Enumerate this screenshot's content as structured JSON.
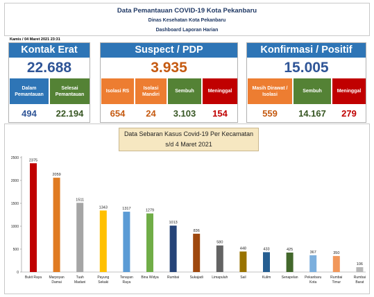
{
  "header": {
    "title": "Data Pemantauan COVID-19 Kota Pekanbaru",
    "subtitle": "Dinas Kesehatan Kota Pekanbaru",
    "report": "Dashboard Laporan Harian"
  },
  "date_text": "Kamis / 04 Maret 2021 23:31",
  "kontak": {
    "title": "Kontak Erat",
    "total": "22.688",
    "sub1_label": "Dalam Pemantauan",
    "sub2_label": "Selesai Pemantauan",
    "sub1_value": "494",
    "sub2_value": "22.194"
  },
  "suspect": {
    "title": "Suspect / PDP",
    "total": "3.935",
    "sub1_label": "Isolasi RS",
    "sub2_label": "Isolasi Mandiri",
    "sub3_label": "Sembuh",
    "sub4_label": "Meninggal",
    "sub1_value": "654",
    "sub2_value": "24",
    "sub3_value": "3.103",
    "sub4_value": "154"
  },
  "konfirmasi": {
    "title": "Konfirmasi / Positif",
    "total": "15.005",
    "sub1_label": "Masih Dirawat / Isolasi",
    "sub2_label": "Sembuh",
    "sub3_label": "Meninggal",
    "sub1_value": "559",
    "sub2_value": "14.167",
    "sub3_value": "279"
  },
  "colors": {
    "blue_head": "#2e75b6",
    "orange_head": "#ed7d31",
    "green_sub": "#548235",
    "red_sub": "#c00000",
    "blue_text": "#2f5597",
    "orange_text": "#c55a11",
    "green_text": "#375623",
    "red_text": "#c00000"
  },
  "chart_title": {
    "line1": "Data Sebaran Kasus Covid-19 Per Kecamatan",
    "line2": "s/d 4 Maret 2021"
  },
  "chart_data": {
    "type": "bar",
    "title": "Data Sebaran Kasus Covid-19 Per Kecamatan s/d 4 Maret 2021",
    "categories": [
      "Bukit Raya",
      "Marpoyan Damai",
      "Tuah Madani",
      "Payung Sekaki",
      "Tenayan Raya",
      "Bina Widya",
      "Rumbai",
      "Sukajadi",
      "Limapuluh",
      "Sail",
      "Kulim",
      "Senapelan",
      "Pekanbaru Kota",
      "Rumbai Timur",
      "Rumbai Barat"
    ],
    "category_lines": [
      [
        "Bukit Raya"
      ],
      [
        "Marpoyan",
        "Damai"
      ],
      [
        "Tuah",
        "Madani"
      ],
      [
        "Payung",
        "Sekaki"
      ],
      [
        "Tenayan",
        "Raya"
      ],
      [
        "Bina Widya"
      ],
      [
        "Rumbai"
      ],
      [
        "Sukajadi"
      ],
      [
        "Limapuluh"
      ],
      [
        "Sail"
      ],
      [
        "Kulim"
      ],
      [
        "Senapelan"
      ],
      [
        "Pekanbaru",
        "Kota"
      ],
      [
        "Rumbai",
        "Timur"
      ],
      [
        "Rumbai",
        "Barat"
      ]
    ],
    "values": [
      2375,
      2059,
      1511,
      1343,
      1317,
      1279,
      1013,
      836,
      580,
      448,
      433,
      425,
      367,
      350,
      106
    ],
    "bar_colors": [
      "#c00000",
      "#e07b22",
      "#a5a5a5",
      "#ffc000",
      "#5b9bd5",
      "#70ad47",
      "#264478",
      "#9e480e",
      "#636363",
      "#997300",
      "#255e91",
      "#43682b",
      "#7cafdd",
      "#f1975a",
      "#b7b7b7"
    ],
    "yticks": [
      0,
      500,
      1000,
      1500,
      2000,
      2500
    ],
    "ylim": [
      0,
      2500
    ],
    "xlabel": "",
    "ylabel": "",
    "grid": false
  }
}
